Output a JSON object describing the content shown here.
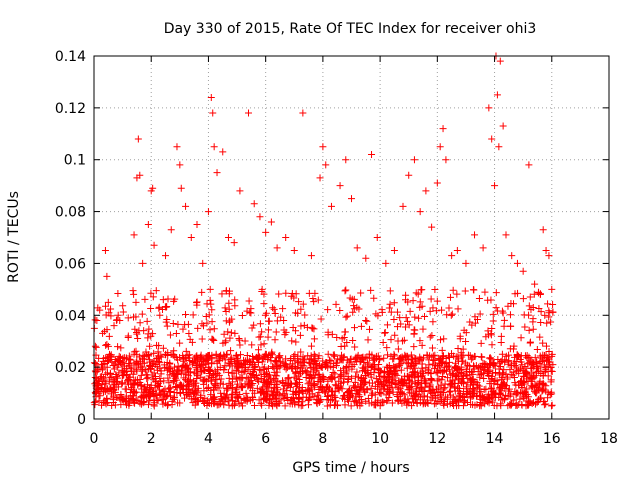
{
  "chart_data": {
    "type": "scatter",
    "title": "Day 330 of 2015, Rate Of TEC Index for receiver ohi3",
    "xlabel": "GPS time / hours",
    "ylabel": "ROTI / TECUs",
    "xlim": [
      0,
      18
    ],
    "ylim": [
      0,
      0.14
    ],
    "xticks": [
      "0",
      "2",
      "4",
      "6",
      "8",
      "10",
      "12",
      "14",
      "16",
      "18"
    ],
    "yticks": [
      "0",
      "0.02",
      "0.04",
      "0.06",
      "0.08",
      "0.1",
      "0.12",
      "0.14"
    ],
    "grid": true,
    "marker": "+",
    "color": "#ff0000",
    "points": [
      [
        0.1,
        0.038
      ],
      [
        0.2,
        0.042
      ],
      [
        0.3,
        0.033
      ],
      [
        0.4,
        0.065
      ],
      [
        0.45,
        0.055
      ],
      [
        0.5,
        0.045
      ],
      [
        0.7,
        0.036
      ],
      [
        0.9,
        0.038
      ],
      [
        1.0,
        0.022
      ],
      [
        1.2,
        0.032
      ],
      [
        1.4,
        0.071
      ],
      [
        1.5,
        0.093
      ],
      [
        1.55,
        0.108
      ],
      [
        1.6,
        0.094
      ],
      [
        1.7,
        0.06
      ],
      [
        1.9,
        0.075
      ],
      [
        2.0,
        0.088
      ],
      [
        2.05,
        0.089
      ],
      [
        2.1,
        0.067
      ],
      [
        2.3,
        0.04
      ],
      [
        2.5,
        0.063
      ],
      [
        2.7,
        0.073
      ],
      [
        2.9,
        0.105
      ],
      [
        3.0,
        0.098
      ],
      [
        3.05,
        0.089
      ],
      [
        3.2,
        0.082
      ],
      [
        3.4,
        0.07
      ],
      [
        3.6,
        0.075
      ],
      [
        3.8,
        0.06
      ],
      [
        4.0,
        0.08
      ],
      [
        4.1,
        0.124
      ],
      [
        4.15,
        0.118
      ],
      [
        4.2,
        0.105
      ],
      [
        4.3,
        0.095
      ],
      [
        4.5,
        0.103
      ],
      [
        4.7,
        0.07
      ],
      [
        4.9,
        0.068
      ],
      [
        5.1,
        0.088
      ],
      [
        5.4,
        0.118
      ],
      [
        5.6,
        0.083
      ],
      [
        5.8,
        0.078
      ],
      [
        6.0,
        0.072
      ],
      [
        6.2,
        0.076
      ],
      [
        6.4,
        0.066
      ],
      [
        6.7,
        0.07
      ],
      [
        7.0,
        0.065
      ],
      [
        7.3,
        0.118
      ],
      [
        7.6,
        0.063
      ],
      [
        7.9,
        0.093
      ],
      [
        8.0,
        0.105
      ],
      [
        8.1,
        0.098
      ],
      [
        8.3,
        0.082
      ],
      [
        8.6,
        0.09
      ],
      [
        8.8,
        0.1
      ],
      [
        9.0,
        0.085
      ],
      [
        9.2,
        0.066
      ],
      [
        9.5,
        0.062
      ],
      [
        9.7,
        0.102
      ],
      [
        9.9,
        0.07
      ],
      [
        10.2,
        0.06
      ],
      [
        10.5,
        0.065
      ],
      [
        10.8,
        0.082
      ],
      [
        11.0,
        0.094
      ],
      [
        11.2,
        0.1
      ],
      [
        11.4,
        0.08
      ],
      [
        11.6,
        0.088
      ],
      [
        11.8,
        0.074
      ],
      [
        12.0,
        0.091
      ],
      [
        12.1,
        0.105
      ],
      [
        12.2,
        0.112
      ],
      [
        12.3,
        0.1
      ],
      [
        12.5,
        0.063
      ],
      [
        12.7,
        0.065
      ],
      [
        13.0,
        0.06
      ],
      [
        13.3,
        0.071
      ],
      [
        13.6,
        0.066
      ],
      [
        13.8,
        0.12
      ],
      [
        13.9,
        0.108
      ],
      [
        14.0,
        0.09
      ],
      [
        14.05,
        0.14
      ],
      [
        14.1,
        0.125
      ],
      [
        14.15,
        0.105
      ],
      [
        14.2,
        0.138
      ],
      [
        14.3,
        0.113
      ],
      [
        14.4,
        0.071
      ],
      [
        14.6,
        0.063
      ],
      [
        14.8,
        0.06
      ],
      [
        15.0,
        0.057
      ],
      [
        15.2,
        0.098
      ],
      [
        15.4,
        0.052
      ],
      [
        15.6,
        0.048
      ],
      [
        15.7,
        0.073
      ],
      [
        15.8,
        0.065
      ],
      [
        15.9,
        0.063
      ],
      [
        16.0,
        0.05
      ]
    ],
    "band": {
      "description_free": true,
      "x_range": [
        0.0,
        16.05
      ],
      "y_min": 0.005,
      "y_core_max": 0.025,
      "y_upper_max": 0.05
    }
  }
}
